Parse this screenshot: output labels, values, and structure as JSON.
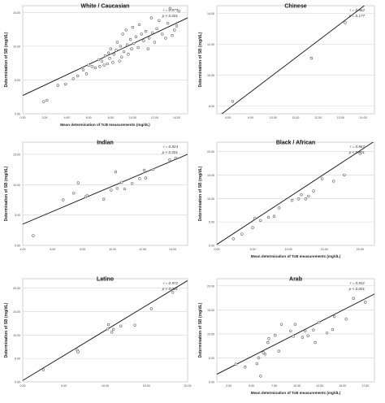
{
  "chart_data": [
    {
      "type": "scatter",
      "title": "White / Caucasian",
      "xlabel": "Mean determination of TcB measurements (mg/dL)",
      "ylabel": "Determination of SB (mg/dL)",
      "annotation": {
        "r": "r = 0.877",
        "p": "p < 0.001"
      },
      "xlim": [
        0,
        15
      ],
      "ylim": [
        0,
        16
      ],
      "xticks": [
        0,
        2,
        4,
        6,
        8,
        10,
        12,
        14
      ],
      "xtick_labels": [
        "0.00",
        "2.00",
        "4.00",
        "6.00",
        "8.00",
        "10.00",
        "12.00",
        "14.00"
      ],
      "yticks": [
        0,
        5,
        10,
        15
      ],
      "ytick_labels": [
        "0.00",
        "5.00",
        "10.00",
        "15.00"
      ],
      "fit_line": [
        [
          0,
          2.7
        ],
        [
          15,
          14.2
        ]
      ],
      "points": [
        [
          1.9,
          1.8
        ],
        [
          2.2,
          2.0
        ],
        [
          3.2,
          4.2
        ],
        [
          3.9,
          4.4
        ],
        [
          4.6,
          5.2
        ],
        [
          5.0,
          5.6
        ],
        [
          5.5,
          6.5
        ],
        [
          5.8,
          5.9
        ],
        [
          6.0,
          7.2
        ],
        [
          6.3,
          7.0
        ],
        [
          6.6,
          6.8
        ],
        [
          6.9,
          8.0
        ],
        [
          7.0,
          7.0
        ],
        [
          7.2,
          7.8
        ],
        [
          7.4,
          7.2
        ],
        [
          7.5,
          8.6
        ],
        [
          7.7,
          7.4
        ],
        [
          7.8,
          9.0
        ],
        [
          7.9,
          8.2
        ],
        [
          8.0,
          9.6
        ],
        [
          8.2,
          7.6
        ],
        [
          8.3,
          8.8
        ],
        [
          8.5,
          9.4
        ],
        [
          8.6,
          10.6
        ],
        [
          8.8,
          7.8
        ],
        [
          8.9,
          10.0
        ],
        [
          9.0,
          8.4
        ],
        [
          9.1,
          11.8
        ],
        [
          9.2,
          9.2
        ],
        [
          9.4,
          12.4
        ],
        [
          9.5,
          10.2
        ],
        [
          9.6,
          8.8
        ],
        [
          9.8,
          11.0
        ],
        [
          9.9,
          9.6
        ],
        [
          10.0,
          12.8
        ],
        [
          10.1,
          10.4
        ],
        [
          10.3,
          11.4
        ],
        [
          10.5,
          9.8
        ],
        [
          10.6,
          13.2
        ],
        [
          10.8,
          11.8
        ],
        [
          11.0,
          10.8
        ],
        [
          11.2,
          12.2
        ],
        [
          11.4,
          9.6
        ],
        [
          11.5,
          11.2
        ],
        [
          11.7,
          14.2
        ],
        [
          11.8,
          12.0
        ],
        [
          12.0,
          10.6
        ],
        [
          12.2,
          12.6
        ],
        [
          12.4,
          13.8
        ],
        [
          12.7,
          11.8
        ],
        [
          13.0,
          11.2
        ],
        [
          13.2,
          13.4
        ],
        [
          13.4,
          15.6
        ],
        [
          13.6,
          11.6
        ],
        [
          13.8,
          12.4
        ],
        [
          14.0,
          13.0
        ],
        [
          14.2,
          15.2
        ]
      ]
    },
    {
      "type": "scatter",
      "title": "Chinese",
      "xlabel": "",
      "ylabel": "Determination of SB (mg/dL)",
      "annotation": {
        "r": "r = 0.962",
        "p": "p = 0.177"
      },
      "xlim": [
        7.5,
        14.5
      ],
      "ylim": [
        7.5,
        14.5
      ],
      "xticks": [
        8,
        9,
        10,
        11,
        12,
        13,
        14
      ],
      "xtick_labels": [
        "8.00",
        "9.00",
        "10.00",
        "11.00",
        "12.00",
        "13.00",
        "14.00"
      ],
      "yticks": [
        8,
        10,
        12,
        14
      ],
      "ytick_labels": [
        "8.00",
        "10.00",
        "12.00",
        "14.00"
      ],
      "fit_line": [
        [
          7.5,
          7.25
        ],
        [
          14.5,
          15.0
        ]
      ],
      "points": [
        [
          8.2,
          8.3
        ],
        [
          11.7,
          11.1
        ],
        [
          13.2,
          13.4
        ]
      ]
    },
    {
      "type": "scatter",
      "title": "Indian",
      "xlabel": "",
      "ylabel": "Determination of SB (mg/dL)",
      "annotation": {
        "r": "r = 0.924",
        "p": "p < 0.001"
      },
      "xlim": [
        4,
        15
      ],
      "ylim": [
        0,
        17
      ],
      "xticks": [
        4,
        6,
        8,
        10,
        12,
        14
      ],
      "xtick_labels": [
        "4.00",
        "6.00",
        "8.00",
        "10.00",
        "12.00",
        "14.00"
      ],
      "yticks": [
        0,
        5,
        10,
        15
      ],
      "ytick_labels": [
        "0.00",
        "5.00",
        "10.00",
        "15.00"
      ],
      "fit_line": [
        [
          4,
          3.5
        ],
        [
          15,
          15.0
        ]
      ],
      "points": [
        [
          4.7,
          1.6
        ],
        [
          6.7,
          7.5
        ],
        [
          7.4,
          8.6
        ],
        [
          7.7,
          10.3
        ],
        [
          8.2,
          8.0
        ],
        [
          8.3,
          8.2
        ],
        [
          9.4,
          7.6
        ],
        [
          9.9,
          9.1
        ],
        [
          10.2,
          12.1
        ],
        [
          10.3,
          9.4
        ],
        [
          10.6,
          10.4
        ],
        [
          10.8,
          9.3
        ],
        [
          11.3,
          10.2
        ],
        [
          11.8,
          11.0
        ],
        [
          12.1,
          12.4
        ],
        [
          12.2,
          11.1
        ],
        [
          12.7,
          12.5
        ],
        [
          13.8,
          14.1
        ],
        [
          14.2,
          14.4
        ]
      ]
    },
    {
      "type": "scatter",
      "title": "Black / African",
      "xlabel": "Mean determination of TcB measurements (mg/dL)",
      "ylabel": "Determination of SB (mg/dL)",
      "annotation": {
        "r": "r = 0.967",
        "p": "p < 0.001"
      },
      "xlim": [
        0,
        22
      ],
      "ylim": [
        0,
        22
      ],
      "xticks": [
        0,
        5,
        10,
        15,
        20
      ],
      "xtick_labels": [
        "0.00",
        "5.00",
        "10.00",
        "15.00",
        "20.00"
      ],
      "yticks": [
        0,
        5,
        10,
        15,
        20
      ],
      "ytick_labels": [
        "0.00",
        "5.00",
        "10.00",
        "15.00",
        "20.00"
      ],
      "fit_line": [
        [
          0,
          0.2
        ],
        [
          22,
          22.2
        ]
      ],
      "points": [
        [
          2.3,
          1.4
        ],
        [
          3.5,
          2.4
        ],
        [
          5.0,
          3.8
        ],
        [
          5.3,
          5.8
        ],
        [
          6.1,
          5.3
        ],
        [
          7.2,
          6.0
        ],
        [
          8.0,
          6.2
        ],
        [
          8.7,
          8.0
        ],
        [
          10.5,
          9.6
        ],
        [
          11.4,
          9.9
        ],
        [
          11.8,
          10.8
        ],
        [
          12.4,
          9.9
        ],
        [
          12.8,
          10.5
        ],
        [
          13.5,
          11.6
        ],
        [
          14.7,
          14.2
        ],
        [
          16.3,
          13.7
        ],
        [
          17.8,
          15.0
        ],
        [
          20.0,
          19.6
        ]
      ]
    },
    {
      "type": "scatter",
      "title": "Latino",
      "xlabel": "",
      "ylabel": "Determination of SB (mg/dL)",
      "annotation": {
        "r": "r = 0.972",
        "p": "p < 0.001"
      },
      "xlim": [
        0,
        20
      ],
      "ylim": [
        0,
        22
      ],
      "xticks": [
        0,
        5,
        10,
        15,
        20
      ],
      "xtick_labels": [
        "0.00",
        "5.00",
        "10.00",
        "15.00",
        "20.00"
      ],
      "yticks": [
        0,
        5,
        10,
        15,
        20
      ],
      "ytick_labels": [
        "0.00",
        "5.00",
        "10.00",
        "15.00",
        "20.00"
      ],
      "fit_line": [
        [
          0,
          0.3
        ],
        [
          20,
          21.6
        ]
      ],
      "points": [
        [
          2.5,
          2.6
        ],
        [
          6.6,
          6.8
        ],
        [
          6.7,
          6.4
        ],
        [
          10.3,
          11.3
        ],
        [
          10.4,
          12.2
        ],
        [
          10.8,
          10.6
        ],
        [
          11.0,
          11.2
        ],
        [
          11.9,
          11.9
        ],
        [
          13.6,
          12.1
        ],
        [
          15.6,
          15.6
        ],
        [
          18.2,
          19.1
        ]
      ]
    },
    {
      "type": "scatter",
      "title": "Arab",
      "xlabel": "Mean determination of TcB measurements (mg/dL)",
      "ylabel": "Determination of SB (mg/dL)",
      "annotation": {
        "r": "r = 0.931",
        "p": "p < 0.001"
      },
      "xlim": [
        1.2,
        18.5
      ],
      "ylim": [
        0,
        21.5
      ],
      "xticks": [
        2.5,
        5,
        7.5,
        10,
        12.5,
        15,
        17.5
      ],
      "xtick_labels": [
        "2.50",
        "5.00",
        "7.50",
        "10.00",
        "12.50",
        "15.00",
        "17.50"
      ],
      "yticks": [
        0,
        5,
        10,
        15,
        20
      ],
      "ytick_labels": [
        "0.00",
        "5.00",
        "10.00",
        "15.00",
        "20.00"
      ],
      "fit_line": [
        [
          1.2,
          1.6
        ],
        [
          18.5,
          18.3
        ]
      ],
      "points": [
        [
          3.3,
          3.7
        ],
        [
          4.3,
          3.1
        ],
        [
          5.6,
          3.8
        ],
        [
          5.8,
          5.0
        ],
        [
          6.0,
          1.2
        ],
        [
          6.3,
          6.1
        ],
        [
          6.5,
          5.8
        ],
        [
          6.8,
          8.2
        ],
        [
          6.9,
          9.0
        ],
        [
          7.6,
          9.7
        ],
        [
          8.0,
          6.4
        ],
        [
          8.3,
          12.0
        ],
        [
          9.3,
          10.6
        ],
        [
          9.6,
          9.5
        ],
        [
          9.8,
          12.0
        ],
        [
          10.6,
          9.3
        ],
        [
          10.9,
          10.6
        ],
        [
          11.2,
          9.6
        ],
        [
          11.8,
          10.8
        ],
        [
          12.0,
          8.2
        ],
        [
          12.4,
          12.4
        ],
        [
          13.3,
          10.2
        ],
        [
          13.9,
          10.9
        ],
        [
          14.1,
          13.6
        ],
        [
          15.4,
          13.1
        ],
        [
          16.2,
          17.4
        ],
        [
          17.5,
          16.6
        ]
      ]
    }
  ]
}
